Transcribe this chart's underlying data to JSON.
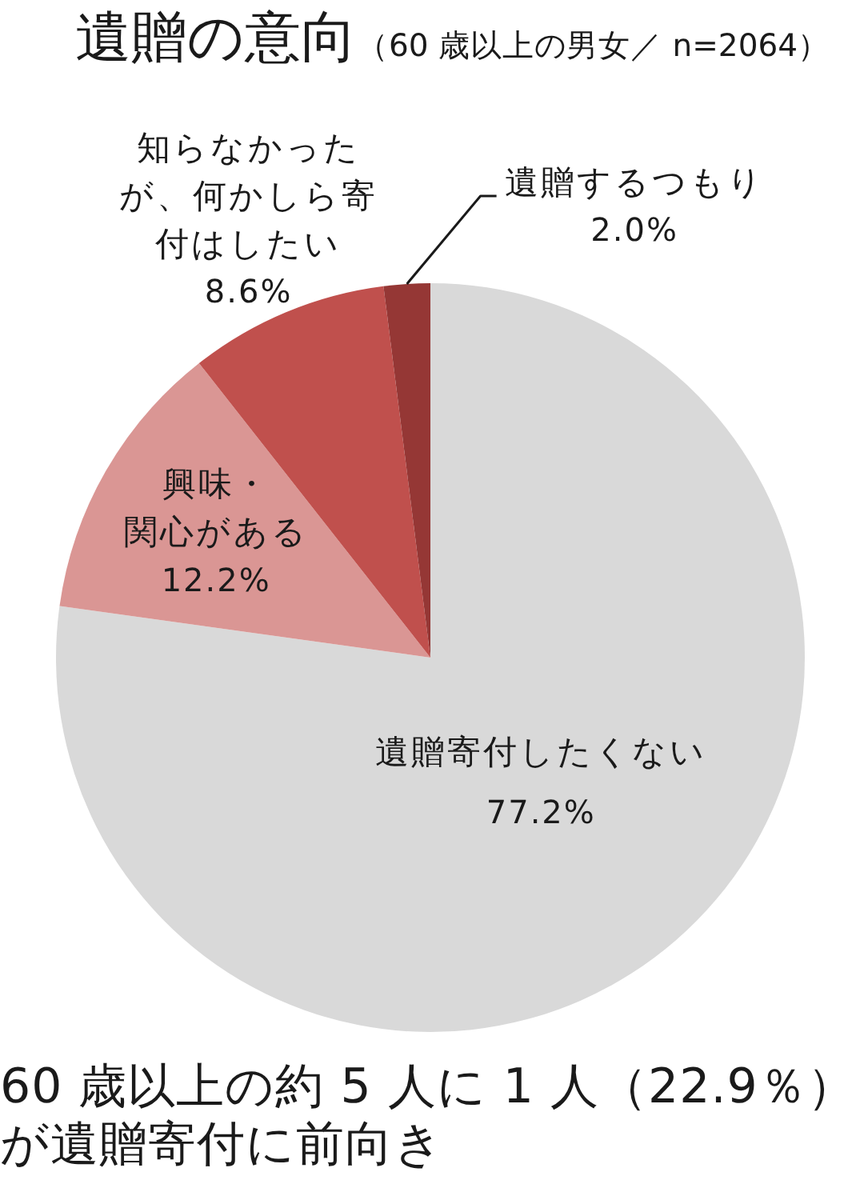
{
  "chart_data": {
    "type": "pie",
    "title": "遺贈の意向",
    "subtitle": "（60 歳以上の男女／ n=2064）",
    "categories": [
      "遺贈寄付したくない",
      "興味・関心がある",
      "知らなかったが、何かしら寄付はしたい",
      "遺贈するつもり"
    ],
    "values": [
      77.2,
      12.2,
      8.6,
      2.0
    ],
    "colors": [
      "#d9d9d9",
      "#da9694",
      "#c0504d",
      "#953735"
    ],
    "value_labels": [
      "77.2%",
      "12.2%",
      "8.6%",
      "2.0%"
    ],
    "annotations": [
      "60 歳以上の約 5 人に 1 人（22.9％）が遺贈寄付に前向き"
    ]
  }
}
